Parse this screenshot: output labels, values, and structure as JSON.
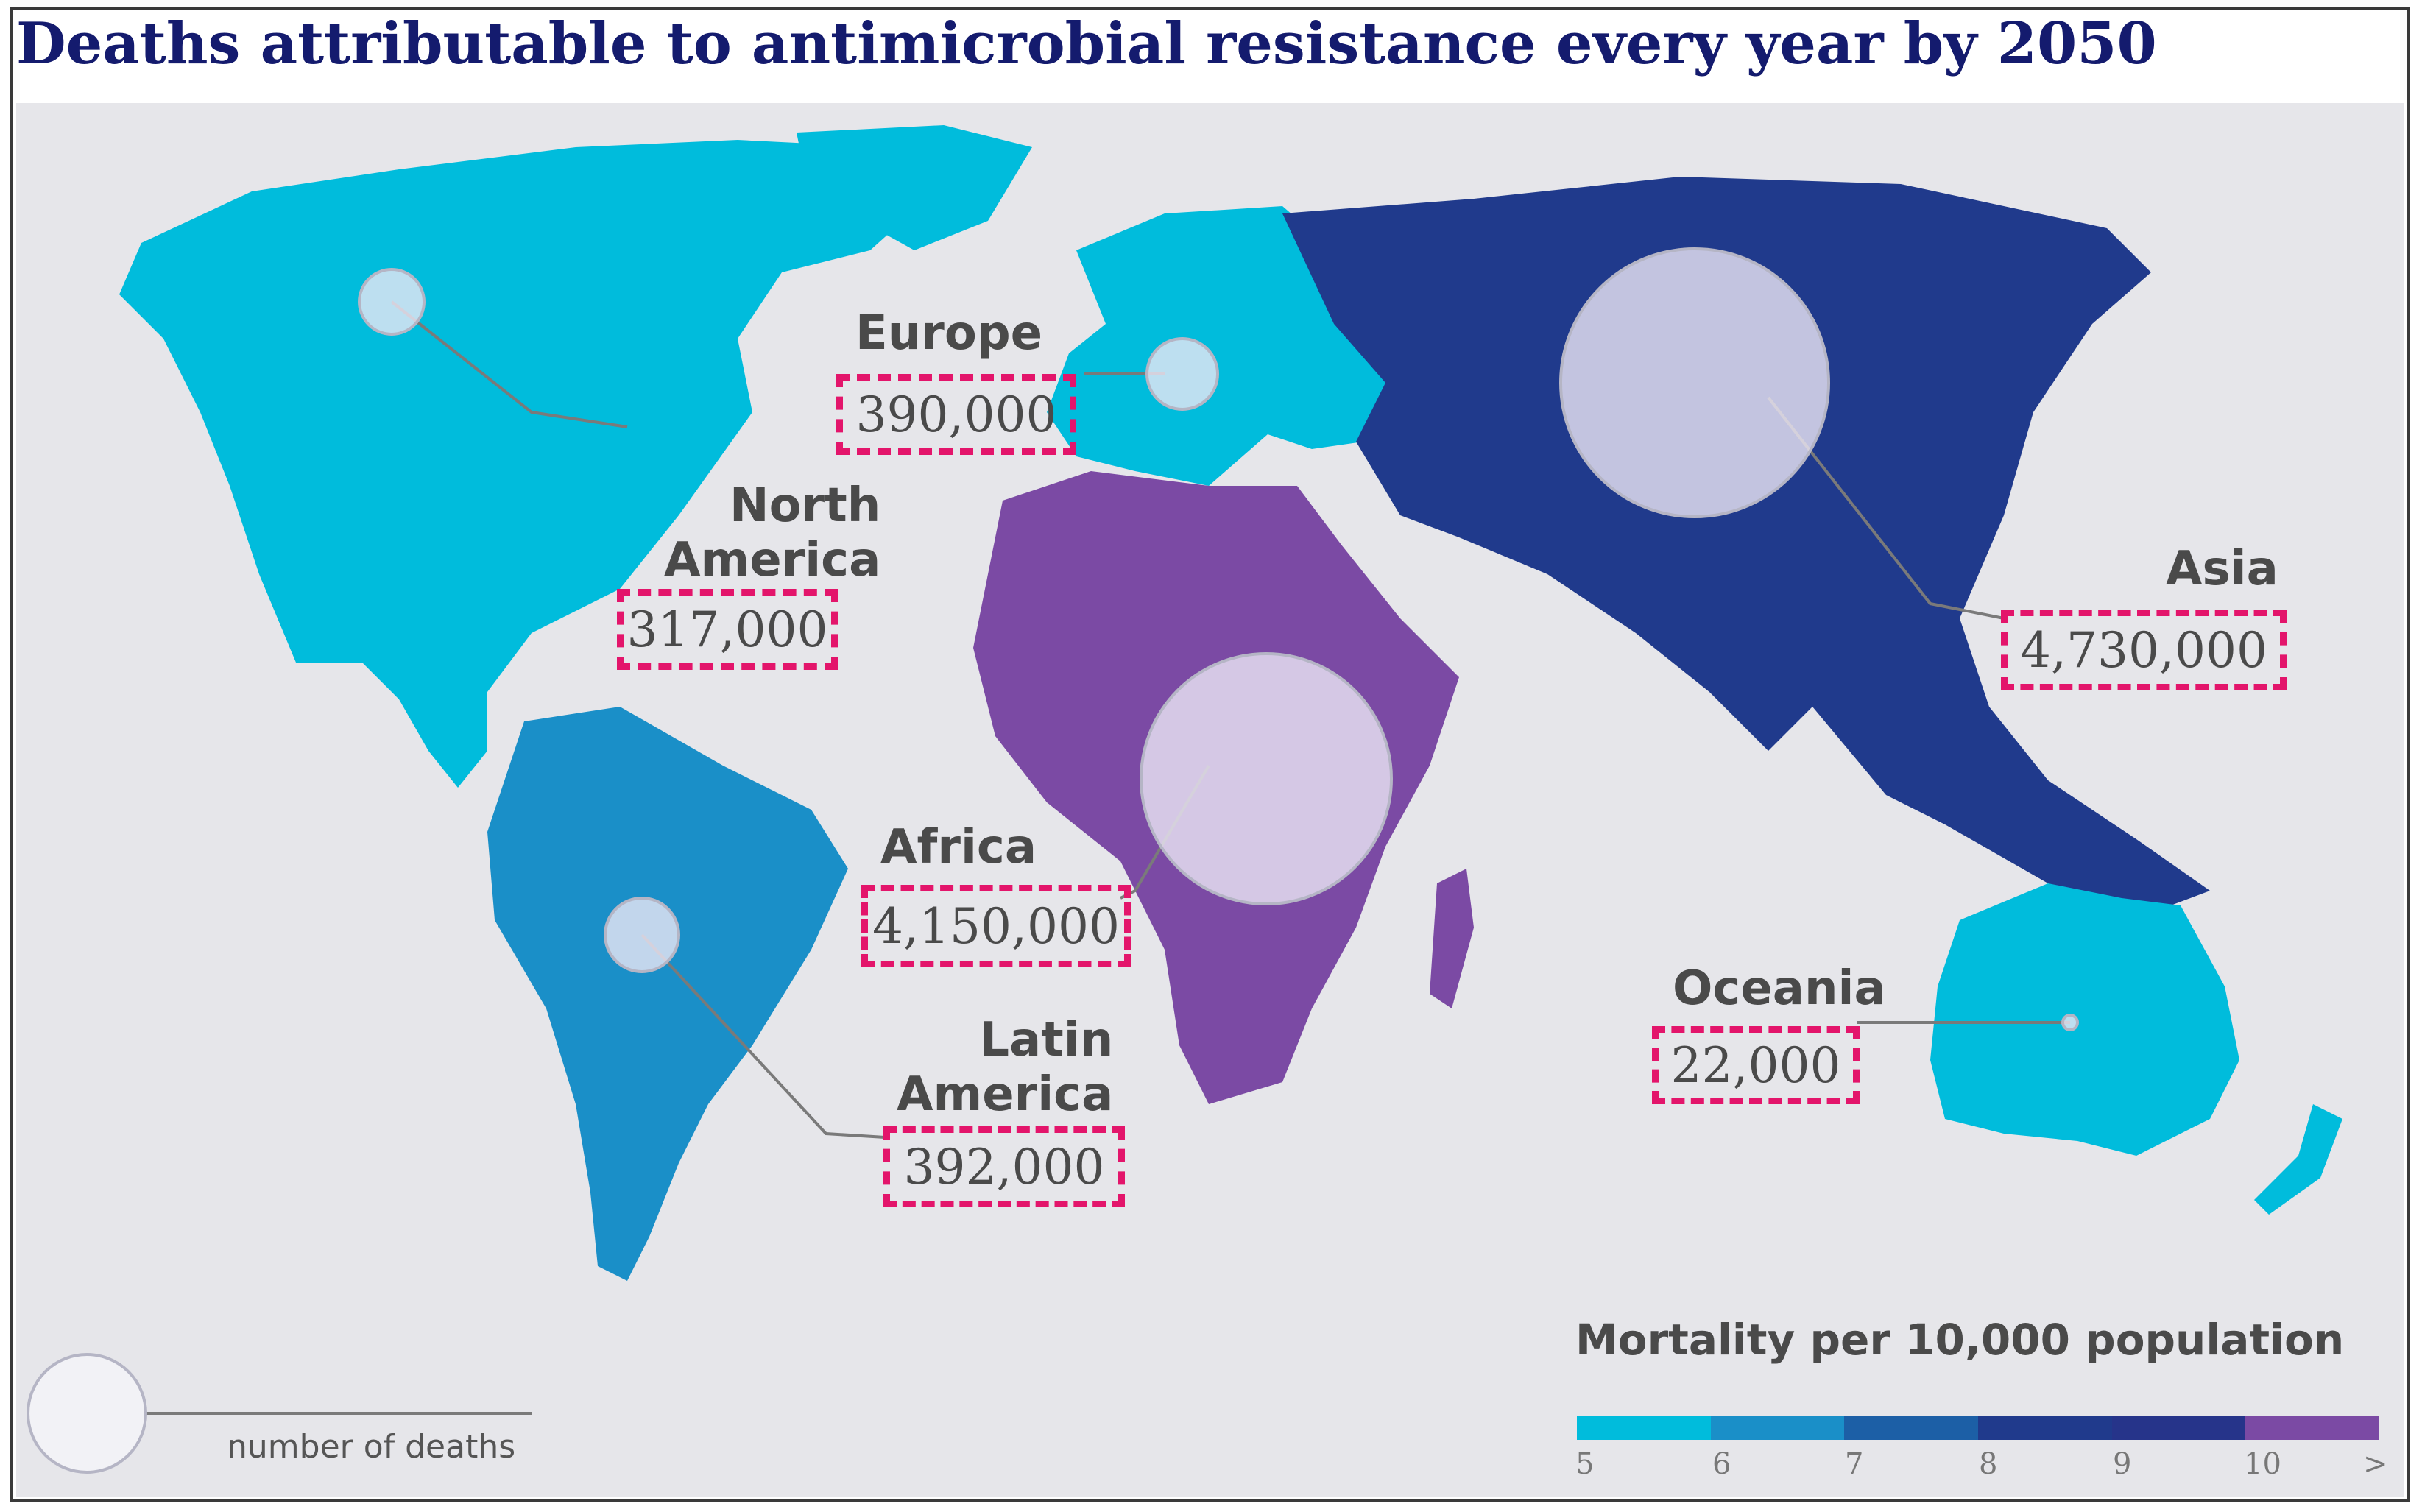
{
  "title": "Deaths attributable to antimicrobial resistance every year by 2050",
  "colors": {
    "background": "#e6e6ea",
    "scale": [
      "#00bcdc",
      "#1a8fc8",
      "#1c5fa6",
      "#203a8c",
      "#26348a",
      "#7b4aa4"
    ],
    "highlight": "#e3156b",
    "bubble": "#ece7f5"
  },
  "regions": [
    {
      "name": "North America",
      "value": "317,000",
      "mortality_class": 1
    },
    {
      "name": "Europe",
      "value": "390,000",
      "mortality_class": 1
    },
    {
      "name": "Latin America",
      "value": "392,000",
      "mortality_class": 2
    },
    {
      "name": "Africa",
      "value": "4,150,000",
      "mortality_class": 6
    },
    {
      "name": "Asia",
      "value": "4,730,000",
      "mortality_class": 5
    },
    {
      "name": "Oceania",
      "value": "22,000",
      "mortality_class": 1
    }
  ],
  "legend": {
    "title": "Mortality per 10,000 population",
    "ticks": [
      "5",
      "6",
      "7",
      "8",
      "9",
      "10",
      ">"
    ],
    "size_key": "number of deaths"
  }
}
